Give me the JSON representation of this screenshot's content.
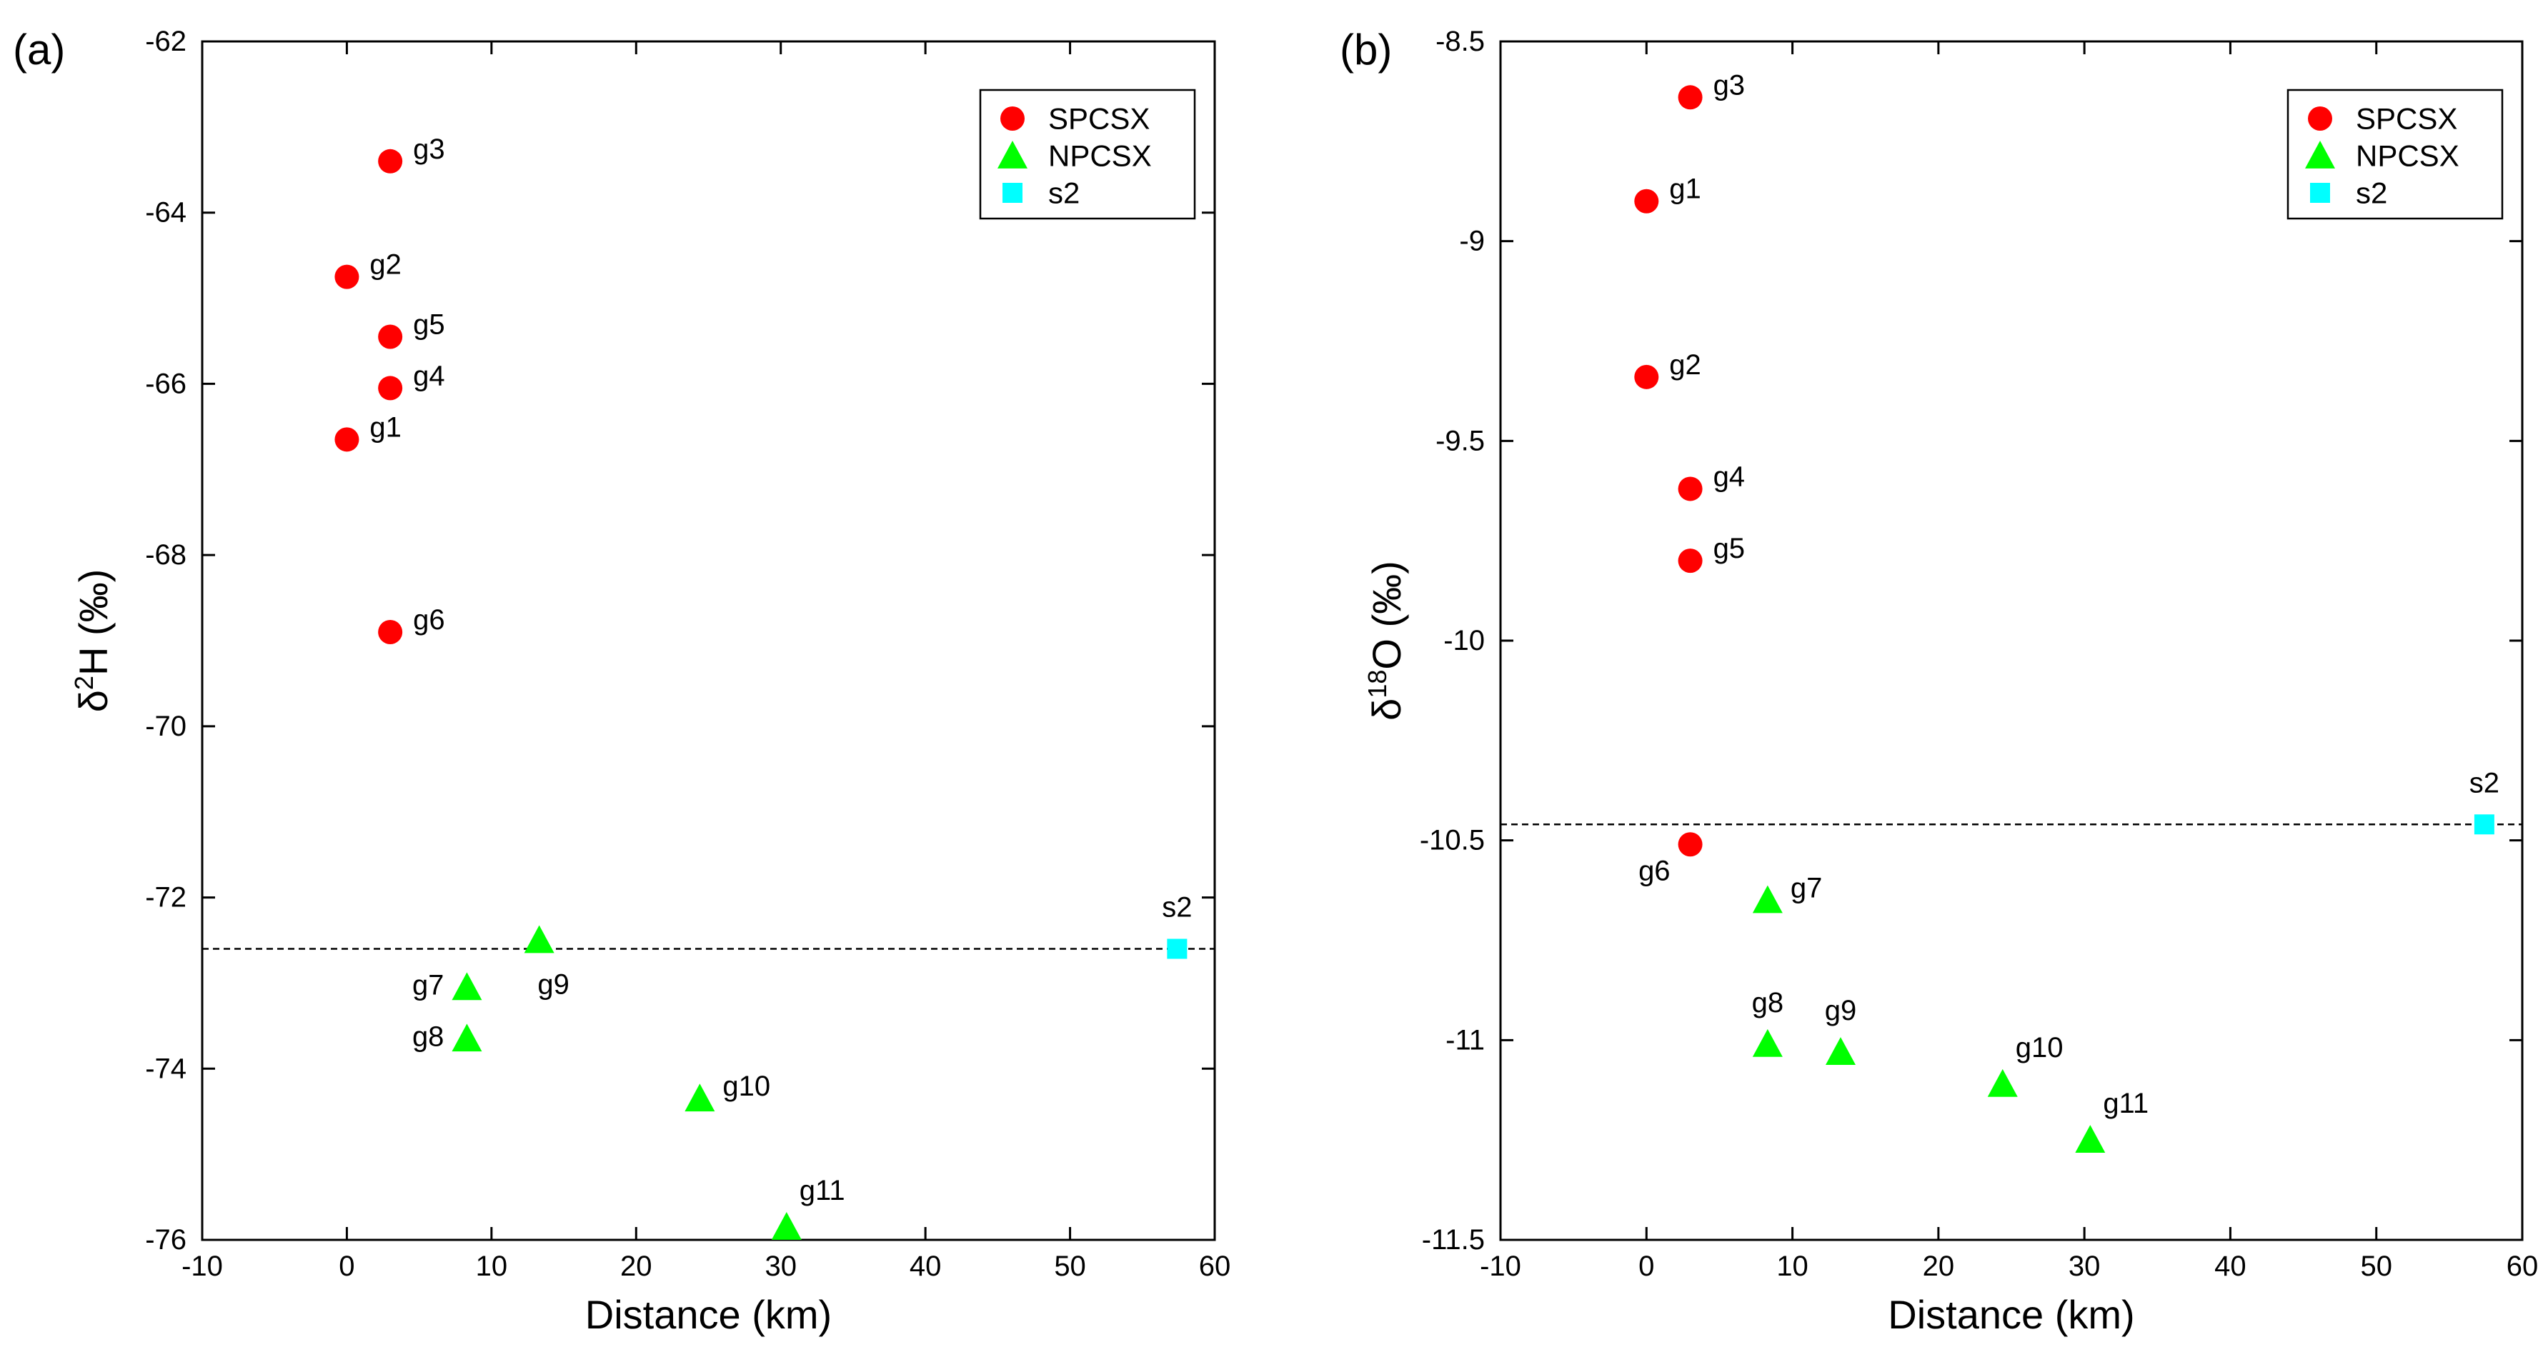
{
  "chart_data": [
    {
      "type": "scatter",
      "panel_label": "(a)",
      "xlabel": "Distance (km)",
      "ylabel_main": "δ",
      "ylabel_sup": "2",
      "ylabel_rest": "H (‰)",
      "xlim": [
        -10,
        60
      ],
      "ylim": [
        -76,
        -62
      ],
      "xticks": [
        -10,
        0,
        10,
        20,
        30,
        40,
        50,
        60
      ],
      "yticks": [
        -76,
        -74,
        -72,
        -70,
        -68,
        -66,
        -64,
        -62
      ],
      "reference_line": {
        "y": -72.6,
        "style": "dashed"
      },
      "legend": {
        "placement": "top-right",
        "entries": [
          "SPCSX",
          "NPCSX",
          "s2"
        ]
      },
      "series": [
        {
          "name": "SPCSX",
          "marker": "circle",
          "color": "#ff0000",
          "points": [
            {
              "label": "g3",
              "x": 3,
              "y": -63.4,
              "label_pos": "right"
            },
            {
              "label": "g2",
              "x": 0,
              "y": -64.75,
              "label_pos": "right"
            },
            {
              "label": "g5",
              "x": 3,
              "y": -65.45,
              "label_pos": "right"
            },
            {
              "label": "g4",
              "x": 3,
              "y": -66.05,
              "label_pos": "right"
            },
            {
              "label": "g1",
              "x": 0,
              "y": -66.65,
              "label_pos": "right"
            },
            {
              "label": "g6",
              "x": 3,
              "y": -68.9,
              "label_pos": "right"
            }
          ]
        },
        {
          "name": "NPCSX",
          "marker": "triangle",
          "color": "#00ff00",
          "points": [
            {
              "label": "g9",
              "x": 13.3,
              "y": -72.5,
              "label_pos": "below"
            },
            {
              "label": "g7",
              "x": 8.3,
              "y": -73.05,
              "label_pos": "left"
            },
            {
              "label": "g8",
              "x": 8.3,
              "y": -73.65,
              "label_pos": "left"
            },
            {
              "label": "g10",
              "x": 24.4,
              "y": -74.35,
              "label_pos": "right"
            },
            {
              "label": "g11",
              "x": 30.4,
              "y": -75.85,
              "label_pos": "above-right"
            }
          ]
        },
        {
          "name": "s2",
          "marker": "square",
          "color": "#00ffff",
          "points": [
            {
              "label": "s2",
              "x": 57.4,
              "y": -72.6,
              "label_pos": "above"
            }
          ]
        }
      ]
    },
    {
      "type": "scatter",
      "panel_label": "(b)",
      "xlabel": "Distance (km)",
      "ylabel_main": "δ",
      "ylabel_sup": "18",
      "ylabel_rest": "O (‰)",
      "xlim": [
        -10,
        60
      ],
      "ylim": [
        -11.5,
        -8.5
      ],
      "xticks": [
        -10,
        0,
        10,
        20,
        30,
        40,
        50,
        60
      ],
      "yticks": [
        -11.5,
        -11,
        -10.5,
        -10,
        -9.5,
        -9,
        -8.5
      ],
      "reference_line": {
        "y": -10.46,
        "style": "dashed"
      },
      "legend": {
        "placement": "top-right",
        "entries": [
          "SPCSX",
          "NPCSX",
          "s2"
        ]
      },
      "series": [
        {
          "name": "SPCSX",
          "marker": "circle",
          "color": "#ff0000",
          "points": [
            {
              "label": "g3",
              "x": 3,
              "y": -8.64,
              "label_pos": "right"
            },
            {
              "label": "g1",
              "x": 0,
              "y": -8.9,
              "label_pos": "right"
            },
            {
              "label": "g2",
              "x": 0,
              "y": -9.34,
              "label_pos": "right"
            },
            {
              "label": "g4",
              "x": 3,
              "y": -9.62,
              "label_pos": "right"
            },
            {
              "label": "g5",
              "x": 3,
              "y": -9.8,
              "label_pos": "right"
            },
            {
              "label": "g6",
              "x": 3,
              "y": -10.51,
              "label_pos": "below-left"
            }
          ]
        },
        {
          "name": "NPCSX",
          "marker": "triangle",
          "color": "#00ff00",
          "points": [
            {
              "label": "g7",
              "x": 8.3,
              "y": -10.65,
              "label_pos": "right"
            },
            {
              "label": "g8",
              "x": 8.3,
              "y": -11.01,
              "label_pos": "above"
            },
            {
              "label": "g9",
              "x": 13.3,
              "y": -11.03,
              "label_pos": "above"
            },
            {
              "label": "g10",
              "x": 24.4,
              "y": -11.11,
              "label_pos": "above-right"
            },
            {
              "label": "g11",
              "x": 30.4,
              "y": -11.25,
              "label_pos": "above-right"
            }
          ]
        },
        {
          "name": "s2",
          "marker": "square",
          "color": "#00ffff",
          "points": [
            {
              "label": "s2",
              "x": 57.4,
              "y": -10.46,
              "label_pos": "above"
            }
          ]
        }
      ]
    }
  ]
}
